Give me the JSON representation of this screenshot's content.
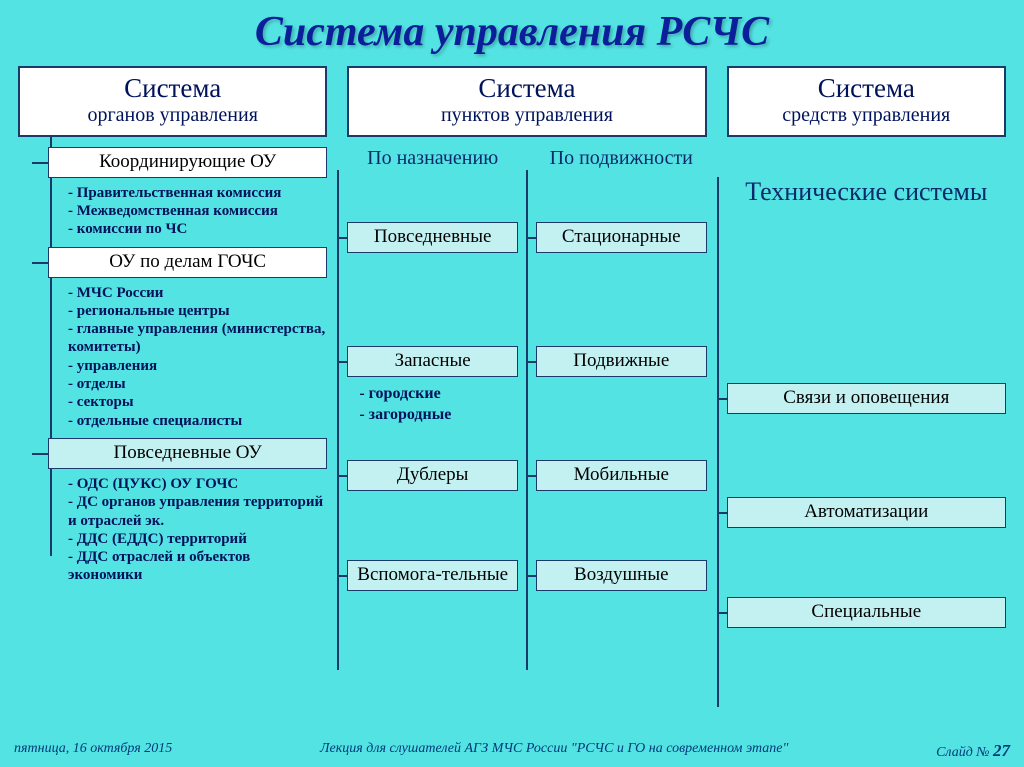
{
  "colors": {
    "background": "#54e3e3",
    "box_fill": "#c3f1f2",
    "box_fill_white": "#ffffff",
    "border": "#1a3a6a",
    "title": "#0a1f99",
    "header_text": "#00135a",
    "body_text": "#000000",
    "bullet_text": "#00135a",
    "footer_text": "#003a7a"
  },
  "fonts": {
    "title_size": 42,
    "header_big": 27,
    "header_small": 20,
    "node": 19,
    "bullet": 15,
    "subhead": 20,
    "tech_title": 26,
    "footer": 14
  },
  "title": "Система   управления   РСЧС",
  "columns": {
    "col1": {
      "header_big": "Система",
      "header_small": "органов управления",
      "groups": [
        {
          "box": "Координирующие ОУ",
          "bullets": [
            "Правительственная комиссия",
            "Межведомственная комиссия",
            "комиссии по  ЧС"
          ]
        },
        {
          "box": "ОУ по делам  ГОЧС",
          "bullets": [
            "МЧС России",
            "региональные  центры",
            "главные  управления (министерства,  комитеты)",
            "управления",
            "отделы",
            "секторы",
            "отдельные специалисты"
          ]
        },
        {
          "box": "Повседневные   ОУ",
          "bullets": [
            "ОДС  (ЦУКС)   ОУ   ГОЧС",
            "ДС  органов  управления территорий  и отраслей  эк.",
            "ДДС (ЕДДС)   территорий",
            "ДДС  отраслей  и  объектов экономики"
          ]
        }
      ]
    },
    "col2": {
      "header_big": "Система",
      "header_small": "пунктов управления",
      "left": {
        "subhead": "По назначению",
        "rows": [
          {
            "box": "Повседневные",
            "sub": []
          },
          {
            "box": "Запасные",
            "sub": [
              "городские",
              "загородные"
            ]
          },
          {
            "box": "Дублеры",
            "sub": []
          },
          {
            "box": "Вспомога-тельные",
            "sub": []
          }
        ]
      },
      "right": {
        "subhead": "По подвижности",
        "rows": [
          {
            "box": "Стационарные"
          },
          {
            "box": "Подвижные"
          },
          {
            "box": "Мобильные"
          },
          {
            "box": "Воздушные"
          }
        ]
      }
    },
    "col3": {
      "header_big": "Система",
      "header_small": "средств управления",
      "tech_title": "Технические системы",
      "rows": [
        "Связи  и  оповещения",
        "Автоматизации",
        "Специальные"
      ]
    }
  },
  "row_tops_col23": [
    52,
    176,
    290,
    390
  ],
  "footer": {
    "date": "пятница, 16 октября 2015",
    "lecture": "Лекция  для  слушателей  АГЗ   МЧС  России   \"РСЧС   и   ГО   на  современном  этапе\"",
    "slide_label": "Слайд № ",
    "slide_num": "27"
  }
}
